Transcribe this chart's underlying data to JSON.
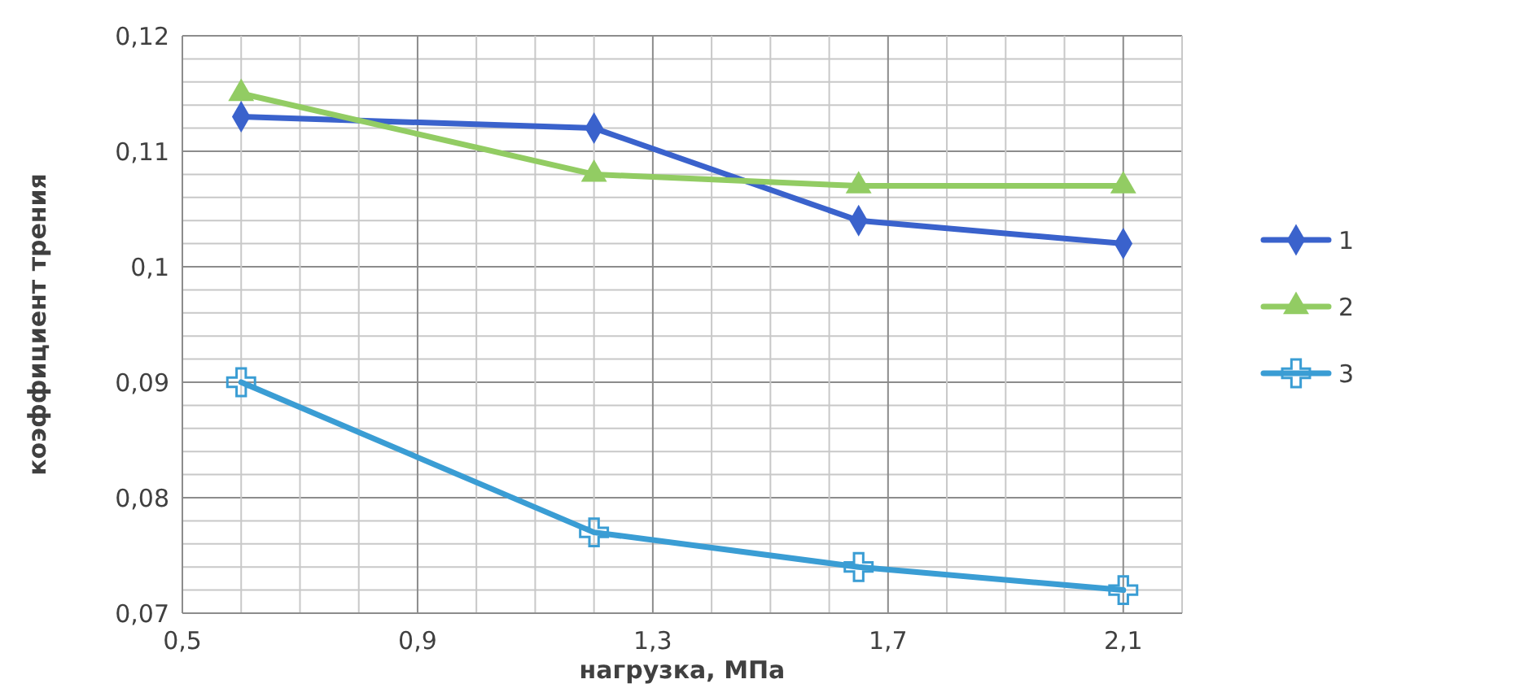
{
  "chart_data": {
    "type": "line",
    "xlabel": "нагрузка, МПа",
    "ylabel": "коэффициент трения",
    "x": [
      0.6,
      1.2,
      1.65,
      2.1
    ],
    "series": [
      {
        "name": "1",
        "color": "#3a62cc",
        "marker": "diamond",
        "values": [
          0.113,
          0.112,
          0.104,
          0.102
        ]
      },
      {
        "name": "2",
        "color": "#92cc63",
        "marker": "triangle",
        "values": [
          0.115,
          0.108,
          0.107,
          0.107
        ]
      },
      {
        "name": "3",
        "color": "#3a9dd4",
        "marker": "cross",
        "values": [
          0.09,
          0.077,
          0.074,
          0.072
        ]
      }
    ],
    "xlim": [
      0.5,
      2.2
    ],
    "xticks": [
      {
        "value": 0.5,
        "label": "0,5"
      },
      {
        "value": 0.6,
        "label": null
      },
      {
        "value": 0.7,
        "label": null
      },
      {
        "value": 0.8,
        "label": null
      },
      {
        "value": 0.9,
        "label": "0,9"
      },
      {
        "value": 1.0,
        "label": null
      },
      {
        "value": 1.1,
        "label": null
      },
      {
        "value": 1.2,
        "label": null
      },
      {
        "value": 1.3,
        "label": "1,3"
      },
      {
        "value": 1.4,
        "label": null
      },
      {
        "value": 1.5,
        "label": null
      },
      {
        "value": 1.6,
        "label": null
      },
      {
        "value": 1.7,
        "label": "1,7"
      },
      {
        "value": 1.8,
        "label": null
      },
      {
        "value": 1.9,
        "label": null
      },
      {
        "value": 2.0,
        "label": null
      },
      {
        "value": 2.1,
        "label": "2,1"
      },
      {
        "value": 2.2,
        "label": null
      }
    ],
    "ylim": [
      0.07,
      0.12
    ],
    "yticks": [
      {
        "value": 0.07,
        "label": "0,07"
      },
      {
        "value": 0.072,
        "label": null
      },
      {
        "value": 0.074,
        "label": null
      },
      {
        "value": 0.076,
        "label": null
      },
      {
        "value": 0.078,
        "label": null
      },
      {
        "value": 0.08,
        "label": "0,08"
      },
      {
        "value": 0.082,
        "label": null
      },
      {
        "value": 0.084,
        "label": null
      },
      {
        "value": 0.086,
        "label": null
      },
      {
        "value": 0.088,
        "label": null
      },
      {
        "value": 0.09,
        "label": "0,09"
      },
      {
        "value": 0.092,
        "label": null
      },
      {
        "value": 0.094,
        "label": null
      },
      {
        "value": 0.096,
        "label": null
      },
      {
        "value": 0.098,
        "label": null
      },
      {
        "value": 0.1,
        "label": "0,1"
      },
      {
        "value": 0.102,
        "label": null
      },
      {
        "value": 0.104,
        "label": null
      },
      {
        "value": 0.106,
        "label": null
      },
      {
        "value": 0.108,
        "label": null
      },
      {
        "value": 0.11,
        "label": "0,11"
      },
      {
        "value": 0.112,
        "label": null
      },
      {
        "value": 0.114,
        "label": null
      },
      {
        "value": 0.116,
        "label": null
      },
      {
        "value": 0.118,
        "label": null
      },
      {
        "value": 0.12,
        "label": "0,12"
      }
    ],
    "grid": true,
    "legend": "right",
    "line_style": "solid"
  }
}
